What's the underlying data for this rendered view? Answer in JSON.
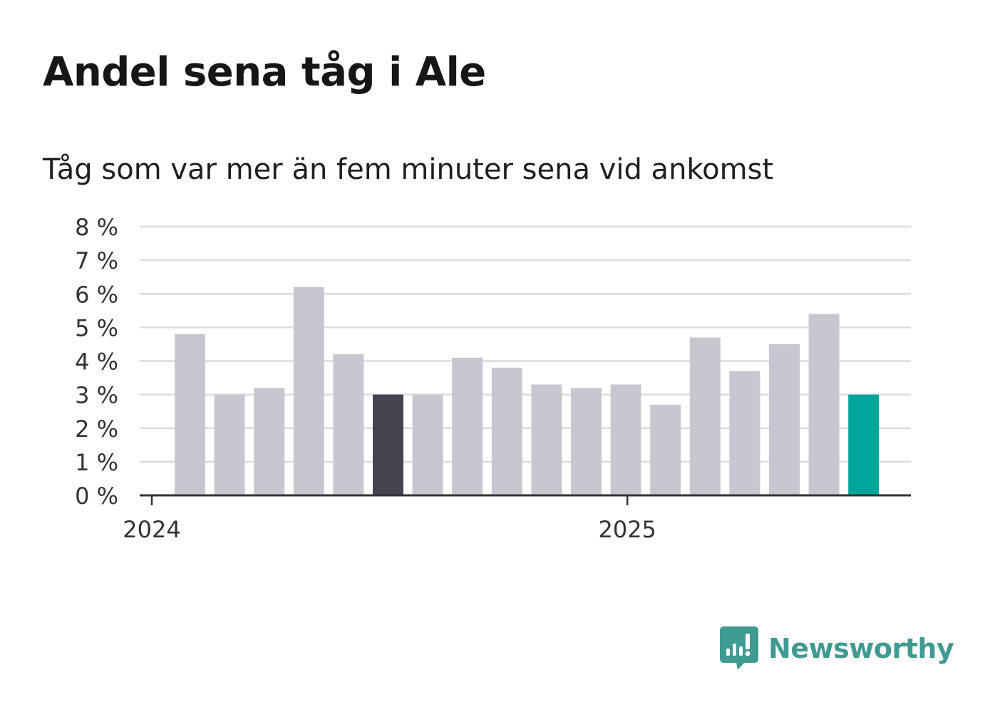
{
  "title": "Andel sena tåg i Ale",
  "subtitle": "Tåg som var mer än fem minuter sena vid ankomst",
  "brand": {
    "name": "Newsworthy",
    "icon": "newsworthy-logo-icon",
    "color": "#3f9a91"
  },
  "chart_data": {
    "type": "bar",
    "title": "Andel sena tåg i Ale",
    "subtitle": "Tåg som var mer än fem minuter sena vid ankomst",
    "x": [
      "2024-01",
      "2024-02",
      "2024-03",
      "2024-04",
      "2024-05",
      "2024-06",
      "2024-07",
      "2024-08",
      "2024-09",
      "2024-10",
      "2024-11",
      "2024-12",
      "2025-01",
      "2025-02",
      "2025-03",
      "2025-04",
      "2025-05",
      "2025-06"
    ],
    "values": [
      4.8,
      3.0,
      3.2,
      6.2,
      4.2,
      3.0,
      3.0,
      4.1,
      3.8,
      3.3,
      3.2,
      3.3,
      2.7,
      4.7,
      3.7,
      4.5,
      5.4,
      3.0
    ],
    "highlight": {
      "2024-06": "#45434f",
      "2025-06": "#00a59a"
    },
    "bar_color": "#c8c7d1",
    "ylim": [
      0,
      8
    ],
    "y_ticks": [
      {
        "value": 0,
        "label": "0 %"
      },
      {
        "value": 1,
        "label": "1 %"
      },
      {
        "value": 2,
        "label": "2 %"
      },
      {
        "value": 3,
        "label": "3 %"
      },
      {
        "value": 4,
        "label": "4 %"
      },
      {
        "value": 5,
        "label": "5 %"
      },
      {
        "value": 6,
        "label": "6 %"
      },
      {
        "value": 7,
        "label": "7 %"
      },
      {
        "value": 8,
        "label": "8 %"
      }
    ],
    "x_ticks": [
      {
        "value": "2024-01",
        "label": "2024"
      },
      {
        "value": "2025-01",
        "label": "2025"
      }
    ],
    "grid": true,
    "legend": "none"
  }
}
